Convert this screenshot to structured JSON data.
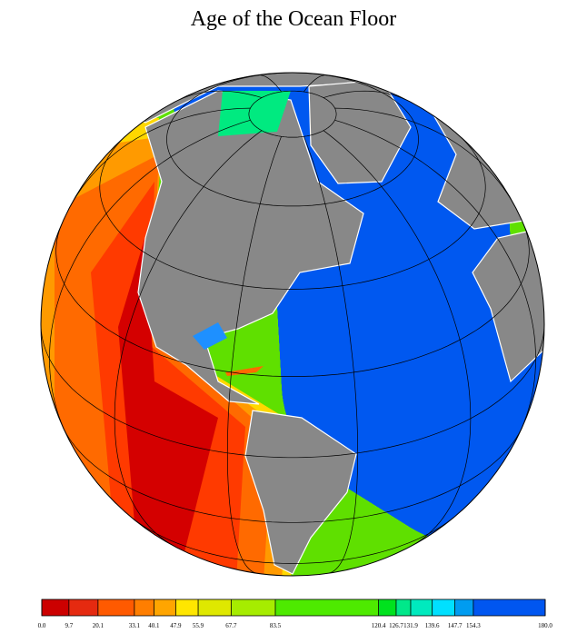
{
  "title": "Age of the Ocean Floor",
  "colorbar": {
    "ticks": [
      {
        "value": 0,
        "label": "0.0"
      },
      9.7,
      20.1,
      33.1,
      40.1,
      47.9,
      55.9,
      67.7,
      83.5,
      120.4,
      126.7,
      131.9,
      139.6,
      147.7,
      154.3,
      {
        "value": 180,
        "label": "180.0"
      }
    ],
    "colors": [
      "#cc0000",
      "#e52a10",
      "#ff5a00",
      "#ff7e00",
      "#ffa500",
      "#ffe600",
      "#dfe800",
      "#a6ec00",
      "#4eea00",
      "#00e21e",
      "#00e88a",
      "#00eabe",
      "#00e0ff",
      "#009cf0",
      "#0056f0"
    ]
  }
}
